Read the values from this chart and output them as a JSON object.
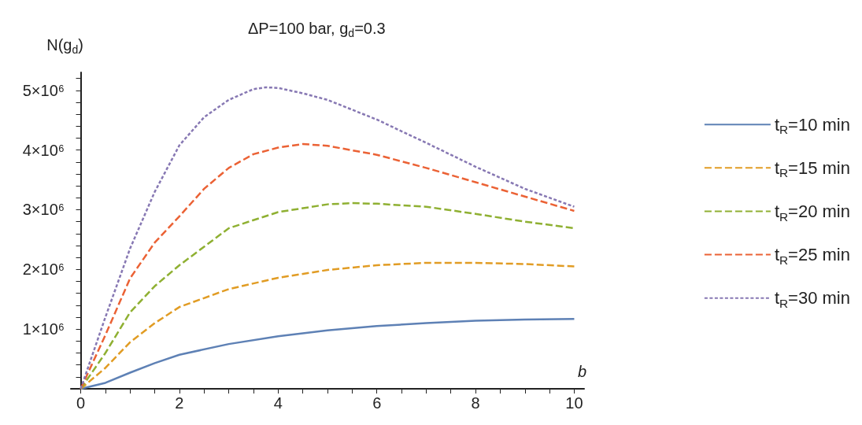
{
  "chart_data": {
    "type": "line",
    "title": "ΔP=100 bar, g$_{d}$=0.3",
    "xlabel": "b",
    "ylabel": "N(g$_{d}$)",
    "xlim": [
      -0.2,
      10.2
    ],
    "ylim": [
      0,
      5300000
    ],
    "xticks": [
      0,
      {
        "value": 0.5,
        "label": null
      },
      {
        "value": 1,
        "label": null
      },
      {
        "value": 1.5,
        "label": null
      },
      2,
      {
        "value": 2.5,
        "label": null
      },
      {
        "value": 3,
        "label": null
      },
      {
        "value": 3.5,
        "label": null
      },
      4,
      {
        "value": 4.5,
        "label": null
      },
      {
        "value": 5,
        "label": null
      },
      {
        "value": 5.5,
        "label": null
      },
      6,
      {
        "value": 6.5,
        "label": null
      },
      {
        "value": 7,
        "label": null
      },
      {
        "value": 7.5,
        "label": null
      },
      8,
      {
        "value": 8.5,
        "label": null
      },
      {
        "value": 9,
        "label": null
      },
      {
        "value": 9.5,
        "label": null
      },
      10
    ],
    "yticks": [
      {
        "value": 200000,
        "label": null
      },
      {
        "value": 400000,
        "label": null
      },
      {
        "value": 600000,
        "label": null
      },
      {
        "value": 800000,
        "label": null
      },
      {
        "value": 1000000,
        "label": "1×10⁶"
      },
      {
        "value": 1200000,
        "label": null
      },
      {
        "value": 1400000,
        "label": null
      },
      {
        "value": 1600000,
        "label": null
      },
      {
        "value": 1800000,
        "label": null
      },
      {
        "value": 2000000,
        "label": "2×10⁶"
      },
      {
        "value": 2200000,
        "label": null
      },
      {
        "value": 2400000,
        "label": null
      },
      {
        "value": 2600000,
        "label": null
      },
      {
        "value": 2800000,
        "label": null
      },
      {
        "value": 3000000,
        "label": "3×10⁶"
      },
      {
        "value": 3200000,
        "label": null
      },
      {
        "value": 3400000,
        "label": null
      },
      {
        "value": 3600000,
        "label": null
      },
      {
        "value": 3800000,
        "label": null
      },
      {
        "value": 4000000,
        "label": "4×10⁶"
      },
      {
        "value": 4200000,
        "label": null
      },
      {
        "value": 4400000,
        "label": null
      },
      {
        "value": 4600000,
        "label": null
      },
      {
        "value": 4800000,
        "label": null
      },
      {
        "value": 5000000,
        "label": "5×10⁶"
      },
      {
        "value": 5200000,
        "label": null
      }
    ],
    "grid": false,
    "legend": "right",
    "marker": "none",
    "series": [
      {
        "name": "t$_{R}$=10 min",
        "color": "#5e81b5",
        "line_style": "solid",
        "x": [
          0,
          0.5,
          1,
          1.5,
          2,
          3,
          4,
          5,
          6,
          7,
          8,
          9,
          10
        ],
        "values": [
          0,
          100000,
          270000,
          430000,
          570000,
          750000,
          880000,
          980000,
          1050000,
          1100000,
          1140000,
          1160000,
          1170000
        ]
      },
      {
        "name": "t$_{R}$=15 min",
        "color": "#e19c24",
        "line_style": "dashed",
        "x": [
          0,
          0.5,
          1,
          1.5,
          2,
          3,
          4,
          5,
          6,
          7,
          8,
          9,
          10
        ],
        "values": [
          0,
          350000,
          780000,
          1100000,
          1370000,
          1670000,
          1860000,
          1990000,
          2070000,
          2110000,
          2110000,
          2090000,
          2050000
        ]
      },
      {
        "name": "t$_{R}$=20 min",
        "color": "#8fb032",
        "line_style": "dashed",
        "x": [
          0,
          0.5,
          1,
          1.5,
          2,
          3,
          4,
          5,
          5.5,
          6,
          7,
          8,
          9,
          10
        ],
        "values": [
          0,
          600000,
          1280000,
          1720000,
          2070000,
          2690000,
          2960000,
          3090000,
          3110000,
          3100000,
          3050000,
          2930000,
          2800000,
          2690000
        ]
      },
      {
        "name": "t$_{R}$=25 min",
        "color": "#eb6235",
        "line_style": "dashed",
        "x": [
          0,
          0.5,
          1,
          1.5,
          2,
          2.5,
          3,
          3.5,
          4,
          4.5,
          5,
          6,
          7,
          8,
          9,
          10
        ],
        "values": [
          0,
          900000,
          1850000,
          2450000,
          2890000,
          3350000,
          3700000,
          3930000,
          4040000,
          4100000,
          4070000,
          3920000,
          3700000,
          3460000,
          3220000,
          2980000
        ]
      },
      {
        "name": "t$_{R}$=30 min",
        "color": "#8778b3",
        "line_style": "dotted",
        "x": [
          0,
          0.5,
          1,
          1.5,
          2,
          2.5,
          3,
          3.5,
          3.75,
          4,
          4.5,
          5,
          6,
          7,
          8,
          9,
          10
        ],
        "values": [
          0,
          1200000,
          2350000,
          3300000,
          4080000,
          4550000,
          4840000,
          5020000,
          5050000,
          5040000,
          4950000,
          4840000,
          4510000,
          4120000,
          3720000,
          3350000,
          3050000
        ]
      }
    ]
  }
}
